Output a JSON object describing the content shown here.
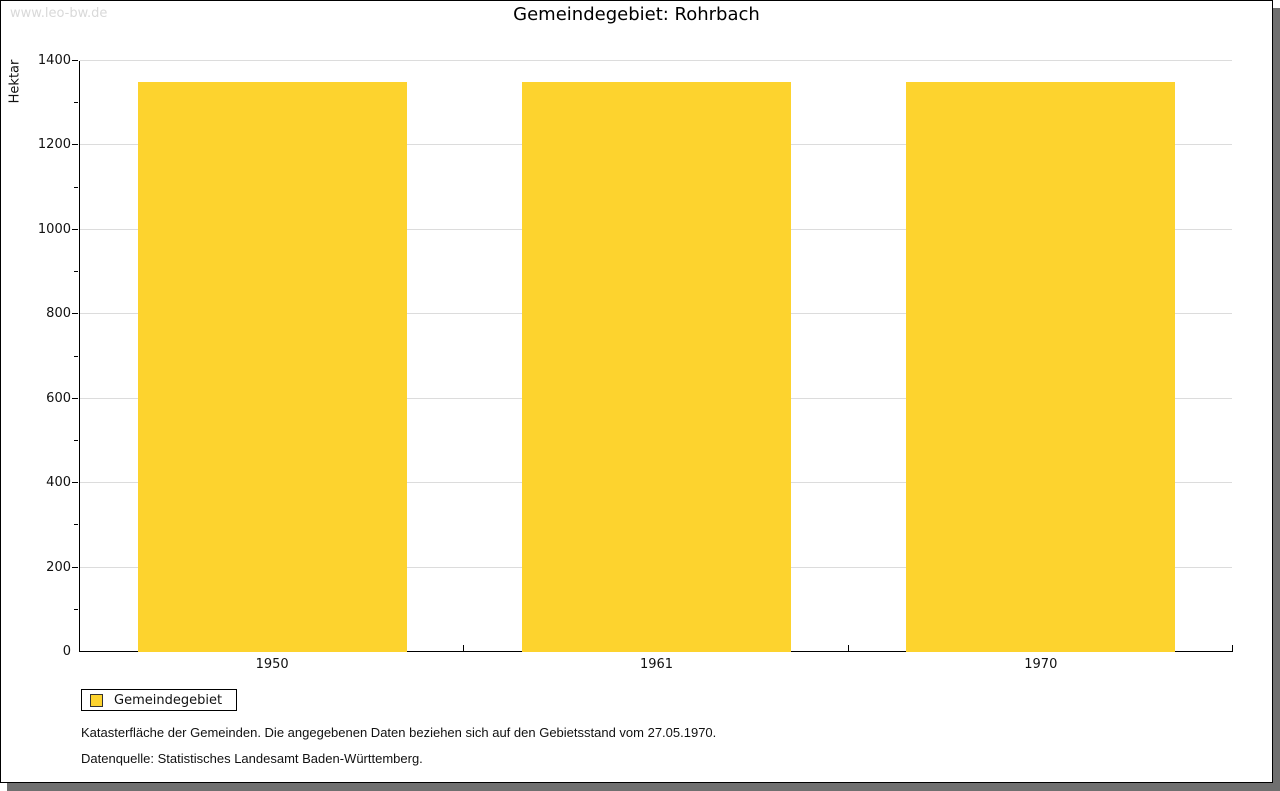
{
  "watermark": "www.leo-bw.de",
  "title": "Gemeindegebiet: Rohrbach",
  "chart_data": {
    "type": "bar",
    "title": "Gemeindegebiet: Rohrbach",
    "categories": [
      "1950",
      "1961",
      "1970"
    ],
    "series": [
      {
        "name": "Gemeindegebiet",
        "values": [
          1350,
          1350,
          1350
        ]
      }
    ],
    "xlabel": "",
    "ylabel": "Hektar",
    "ylim": [
      0,
      1400
    ],
    "ytick_step": 200,
    "yminor_step": 100,
    "grid": "horizontal-major",
    "legend_position": "bottom-left",
    "unit": "Hektar"
  },
  "legend": {
    "label": "Gemeindegebiet"
  },
  "footnotes": {
    "line1": "Katasterfläche der Gemeinden. Die angegebenen Daten beziehen sich auf den Gebietsstand vom 27.05.1970.",
    "line2": "Datenquelle: Statistisches Landesamt Baden-Württemberg."
  },
  "colors": {
    "bar": "#FDD32E",
    "swatch": "#FDD32E",
    "gridline": "#DCDCDC",
    "axis": "#000000",
    "watermark": "#D9D9D9",
    "shadow": "#6F6F6F",
    "background": "#FFFFFF"
  }
}
